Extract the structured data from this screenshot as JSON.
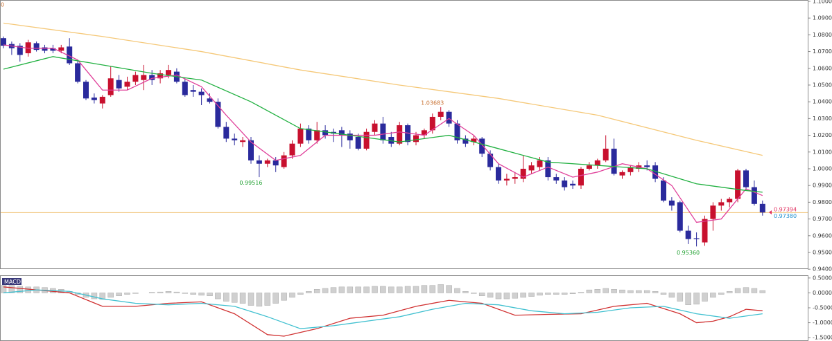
{
  "chart_data": {
    "type": "candlestick",
    "corner_label": "0",
    "candles": [
      [
        1.078,
        1.079,
        1.072,
        1.0735
      ],
      [
        1.0745,
        1.076,
        1.068,
        1.072
      ],
      [
        1.0735,
        1.075,
        1.064,
        1.068
      ],
      [
        1.069,
        1.077,
        1.067,
        1.0755
      ],
      [
        1.075,
        1.076,
        1.07,
        1.071
      ],
      [
        1.0725,
        1.074,
        1.069,
        1.0705
      ],
      [
        1.072,
        1.074,
        1.069,
        1.0705
      ],
      [
        1.0705,
        1.074,
        1.069,
        1.0725
      ],
      [
        1.073,
        1.078,
        1.062,
        1.063
      ],
      [
        1.063,
        1.065,
        1.051,
        1.052
      ],
      [
        1.052,
        1.053,
        1.041,
        1.042
      ],
      [
        1.0425,
        1.045,
        1.039,
        1.041
      ],
      [
        1.039,
        1.044,
        1.036,
        1.043
      ],
      [
        1.044,
        1.061,
        1.043,
        1.054
      ],
      [
        1.053,
        1.056,
        1.046,
        1.048
      ],
      [
        1.049,
        1.055,
        1.047,
        1.052
      ],
      [
        1.052,
        1.058,
        1.05,
        1.056
      ],
      [
        1.053,
        1.062,
        1.047,
        1.056
      ],
      [
        1.056,
        1.059,
        1.05,
        1.053
      ],
      [
        1.054,
        1.059,
        1.051,
        1.057
      ],
      [
        1.056,
        1.062,
        1.054,
        1.059
      ],
      [
        1.058,
        1.06,
        1.051,
        1.052
      ],
      [
        1.052,
        1.054,
        1.043,
        1.044
      ],
      [
        1.047,
        1.05,
        1.043,
        1.046
      ],
      [
        1.046,
        1.048,
        1.038,
        1.044
      ],
      [
        1.042,
        1.045,
        1.039,
        1.04
      ],
      [
        1.04,
        1.042,
        1.024,
        1.025
      ],
      [
        1.025,
        1.028,
        1.016,
        1.018
      ],
      [
        1.018,
        1.021,
        1.014,
        1.017
      ],
      [
        1.016,
        1.019,
        1.013,
        1.017
      ],
      [
        1.017,
        1.019,
        1.003,
        1.005
      ],
      [
        1.005,
        1.008,
        0.995,
        1.003
      ],
      [
        1.003,
        1.006,
        1.001,
        1.005
      ],
      [
        1.005,
        1.007,
        0.998,
        1.002
      ],
      [
        1.001,
        1.01,
        1.0,
        1.008
      ],
      [
        1.008,
        1.017,
        1.006,
        1.015
      ],
      [
        1.015,
        1.027,
        1.013,
        1.024
      ],
      [
        1.024,
        1.026,
        1.015,
        1.017
      ],
      [
        1.017,
        1.028,
        1.015,
        1.023
      ],
      [
        1.023,
        1.026,
        1.018,
        1.02
      ],
      [
        1.022,
        1.024,
        1.016,
        1.021
      ],
      [
        1.023,
        1.025,
        1.013,
        1.02
      ],
      [
        1.021,
        1.023,
        1.012,
        1.017
      ],
      [
        1.019,
        1.021,
        1.011,
        1.012
      ],
      [
        1.012,
        1.024,
        1.011,
        1.022
      ],
      [
        1.022,
        1.029,
        1.02,
        1.027
      ],
      [
        1.027,
        1.031,
        1.015,
        1.017
      ],
      [
        1.019,
        1.022,
        1.013,
        1.015
      ],
      [
        1.015,
        1.028,
        1.014,
        1.026
      ],
      [
        1.026,
        1.027,
        1.014,
        1.016
      ],
      [
        1.016,
        1.022,
        1.014,
        1.02
      ],
      [
        1.02,
        1.024,
        1.018,
        1.023
      ],
      [
        1.023,
        1.033,
        1.021,
        1.031
      ],
      [
        1.031,
        1.0368,
        1.029,
        1.034
      ],
      [
        1.034,
        1.035,
        1.025,
        1.027
      ],
      [
        1.027,
        1.029,
        1.015,
        1.017
      ],
      [
        1.018,
        1.02,
        1.013,
        1.015
      ],
      [
        1.016,
        1.02,
        1.014,
        1.018
      ],
      [
        1.018,
        1.019,
        1.007,
        1.009
      ],
      [
        1.009,
        1.011,
        0.999,
        1.001
      ],
      [
        1.001,
        1.003,
        0.991,
        0.993
      ],
      [
        0.993,
        0.997,
        0.99,
        0.994
      ],
      [
        0.994,
        0.998,
        0.991,
        0.995
      ],
      [
        0.994,
        1.008,
        0.992,
        1.0
      ],
      [
        0.999,
        1.004,
        0.997,
        1.002
      ],
      [
        1.001,
        1.007,
        0.999,
        1.005
      ],
      [
        1.005,
        1.007,
        0.993,
        0.995
      ],
      [
        0.995,
        0.997,
        0.991,
        0.993
      ],
      [
        0.993,
        0.995,
        0.987,
        0.989
      ],
      [
        0.991,
        0.993,
        0.988,
        0.99
      ],
      [
        0.99,
        1.001,
        0.988,
        1.0
      ],
      [
        1.0,
        1.004,
        0.999,
        1.002
      ],
      [
        1.002,
        1.006,
        1.0,
        1.005
      ],
      [
        1.005,
        1.02,
        1.004,
        1.012
      ],
      [
        1.012,
        1.018,
        0.996,
        0.997
      ],
      [
        0.996,
        0.999,
        0.994,
        0.998
      ],
      [
        0.998,
        1.002,
        0.996,
        1.001
      ],
      [
        1.0,
        1.004,
        0.998,
        1.002
      ],
      [
        1.002,
        1.005,
        0.999,
        1.001
      ],
      [
        1.002,
        1.004,
        0.992,
        0.994
      ],
      [
        0.993,
        0.995,
        0.98,
        0.981
      ],
      [
        0.981,
        0.983,
        0.975,
        0.978
      ],
      [
        0.98,
        0.981,
        0.962,
        0.963
      ],
      [
        0.963,
        0.966,
        0.955,
        0.958
      ],
      [
        0.9585,
        0.962,
        0.9536,
        0.958
      ],
      [
        0.956,
        0.972,
        0.954,
        0.97
      ],
      [
        0.97,
        0.98,
        0.963,
        0.978
      ],
      [
        0.978,
        0.982,
        0.975,
        0.98
      ],
      [
        0.98,
        0.983,
        0.977,
        0.982
      ],
      [
        0.982,
        1.0,
        0.98,
        0.999
      ],
      [
        0.999,
        1.0,
        0.987,
        0.989
      ],
      [
        0.989,
        0.993,
        0.978,
        0.979
      ],
      [
        0.979,
        0.981,
        0.972,
        0.9739
      ]
    ],
    "up_color": "#c8102e",
    "down_color": "#2a2a9c",
    "lines": [
      {
        "color": "#e0409a",
        "x": [
          0,
          3,
          6,
          9,
          12,
          15,
          18,
          21,
          24,
          27,
          30,
          33,
          36,
          39,
          42,
          45,
          48,
          51,
          54,
          57,
          60,
          63,
          66,
          69,
          72,
          75,
          78,
          81,
          84,
          87,
          90,
          92
        ],
        "values": [
          1.074,
          1.072,
          1.072,
          1.065,
          1.047,
          1.047,
          1.054,
          1.056,
          1.049,
          1.032,
          1.016,
          1.005,
          1.008,
          1.02,
          1.02,
          1.02,
          1.022,
          1.02,
          1.03,
          1.02,
          1.003,
          0.995,
          1.001,
          0.995,
          0.998,
          1.003,
          1.0,
          0.99,
          0.968,
          0.97,
          0.988,
          0.984
        ]
      },
      {
        "color": "#20b040",
        "x": [
          0,
          6,
          12,
          18,
          24,
          30,
          36,
          42,
          48,
          54,
          60,
          66,
          72,
          78,
          84,
          90,
          92
        ],
        "values": [
          1.0595,
          1.067,
          1.062,
          1.057,
          1.053,
          1.04,
          1.024,
          1.02,
          1.016,
          1.02,
          1.012,
          1.004,
          1.002,
          1.0,
          0.991,
          0.987,
          0.986
        ]
      },
      {
        "color": "#f5c878",
        "x": [
          0,
          12,
          24,
          36,
          48,
          60,
          72,
          84,
          92
        ],
        "values": [
          1.087,
          1.079,
          1.07,
          1.059,
          1.05,
          1.042,
          1.032,
          1.017,
          1.008
        ]
      }
    ],
    "hline": {
      "value": 0.9738,
      "color": "#f0c070"
    },
    "ylim": [
      0.9405,
      1.1008
    ],
    "yticks": [
      {
        "value": 0.94,
        "label": "0.94000"
      },
      {
        "value": 0.95,
        "label": "0.95000"
      },
      {
        "value": 0.96,
        "label": "0.96000"
      },
      {
        "value": 0.97,
        "label": "0.97000"
      },
      {
        "value": 0.98,
        "label": "0.98000"
      },
      {
        "value": 0.99,
        "label": "0.99000"
      },
      {
        "value": 1.0,
        "label": "1.00000"
      },
      {
        "value": 1.01,
        "label": "1.01000"
      },
      {
        "value": 1.02,
        "label": "1.02000"
      },
      {
        "value": 1.03,
        "label": "1.03000"
      },
      {
        "value": 1.04,
        "label": "1.04000"
      },
      {
        "value": 1.05,
        "label": "1.05000"
      },
      {
        "value": 1.06,
        "label": "1.06000"
      },
      {
        "value": 1.07,
        "label": "1.07000"
      },
      {
        "value": 1.08,
        "label": "1.08000"
      },
      {
        "value": 1.09,
        "label": "1.09000"
      },
      {
        "value": 1.1,
        "label": "1.10000"
      }
    ],
    "price_labels": [
      {
        "value": 0.97394,
        "label": "0.97394",
        "color": "#e03060"
      },
      {
        "value": 0.9738,
        "label": "0.97380",
        "color": "#2090d0"
      }
    ],
    "annotations": [
      {
        "value": 1.03683,
        "label": "1.03683",
        "index": 53,
        "color": "#c87030",
        "place": "above"
      },
      {
        "value": 0.99516,
        "label": "0.99516",
        "index": 31,
        "color": "#20a030",
        "place": "below"
      },
      {
        "value": 0.9536,
        "label": "0.95360",
        "index": 84,
        "color": "#20a030",
        "place": "below"
      }
    ],
    "macd": {
      "title": "MACD",
      "histogram": [
        0.25,
        0.25,
        0.22,
        0.2,
        0.2,
        0.18,
        0.15,
        0.12,
        0.05,
        -0.05,
        -0.15,
        -0.2,
        -0.22,
        -0.15,
        -0.1,
        -0.05,
        -0.02,
        0.0,
        0.02,
        0.03,
        0.05,
        0.03,
        -0.02,
        -0.05,
        -0.08,
        -0.1,
        -0.2,
        -0.28,
        -0.32,
        -0.35,
        -0.42,
        -0.45,
        -0.42,
        -0.35,
        -0.25,
        -0.15,
        -0.05,
        0.05,
        0.12,
        0.15,
        0.18,
        0.2,
        0.2,
        0.2,
        0.2,
        0.22,
        0.22,
        0.2,
        0.2,
        0.22,
        0.22,
        0.25,
        0.25,
        0.28,
        0.25,
        0.15,
        0.05,
        -0.02,
        -0.1,
        -0.15,
        -0.2,
        -0.2,
        -0.18,
        -0.15,
        -0.12,
        -0.08,
        -0.05,
        -0.05,
        -0.05,
        -0.03,
        0.02,
        0.1,
        0.12,
        0.15,
        0.12,
        0.1,
        0.08,
        0.08,
        0.08,
        0.05,
        -0.05,
        -0.15,
        -0.28,
        -0.4,
        -0.38,
        -0.28,
        -0.15,
        -0.05,
        0.05,
        0.15,
        0.18,
        0.15,
        0.08
      ],
      "histogram_color": "#d0d0d0",
      "lines": [
        {
          "color": "#d03030",
          "x": [
            0,
            4,
            8,
            12,
            16,
            20,
            24,
            28,
            32,
            34,
            38,
            42,
            46,
            50,
            54,
            58,
            62,
            66,
            70,
            74,
            78,
            82,
            84,
            86,
            88,
            90,
            92
          ],
          "values": [
            0.2,
            0.1,
            0.0,
            -0.45,
            -0.45,
            -0.35,
            -0.3,
            -0.7,
            -1.4,
            -1.45,
            -1.2,
            -0.85,
            -0.75,
            -0.45,
            -0.25,
            -0.35,
            -0.75,
            -0.72,
            -0.7,
            -0.45,
            -0.35,
            -0.7,
            -1.0,
            -0.95,
            -0.8,
            -0.55,
            -0.6
          ]
        },
        {
          "color": "#40c0d0",
          "x": [
            0,
            4,
            8,
            12,
            16,
            20,
            24,
            28,
            32,
            36,
            40,
            44,
            48,
            52,
            56,
            60,
            64,
            68,
            72,
            76,
            80,
            84,
            88,
            92
          ],
          "values": [
            0.0,
            0.1,
            0.05,
            -0.2,
            -0.35,
            -0.4,
            -0.35,
            -0.45,
            -0.8,
            -1.2,
            -1.1,
            -0.95,
            -0.8,
            -0.55,
            -0.35,
            -0.4,
            -0.6,
            -0.7,
            -0.65,
            -0.5,
            -0.45,
            -0.7,
            -0.85,
            -0.7
          ]
        }
      ],
      "ylim": [
        -1.59,
        0.59
      ],
      "yticks": [
        {
          "value": 0.5,
          "label": "0.5000"
        },
        {
          "value": 0,
          "label": "0.0000"
        },
        {
          "value": -0.5,
          "label": "-0.5000"
        },
        {
          "value": -1,
          "label": "-1.0000"
        },
        {
          "value": -1.5,
          "label": "-1.5000"
        }
      ]
    }
  }
}
